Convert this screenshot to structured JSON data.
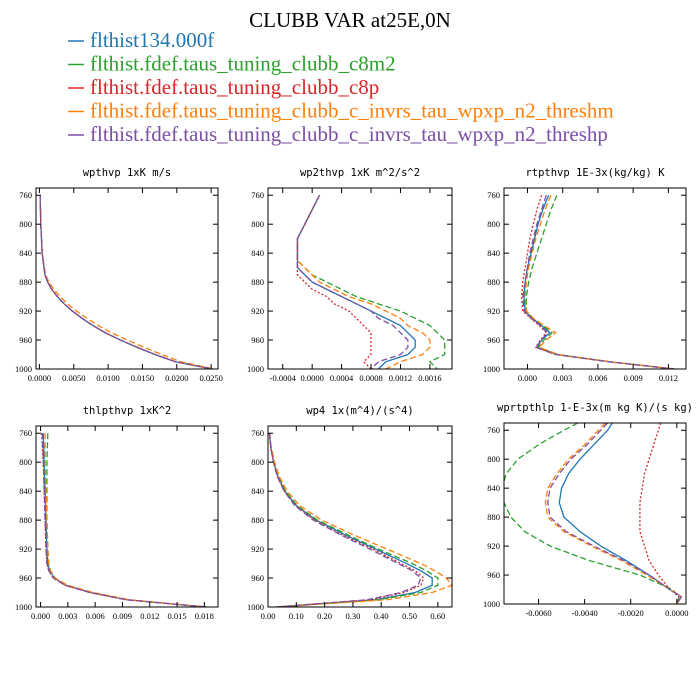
{
  "title": "CLUBB VAR at25E,0N",
  "legend": [
    {
      "name": "flthist134.000f",
      "color": "#1f77b4"
    },
    {
      "name": "flthist.fdef.taus_tuning_clubb_c8m2",
      "color": "#2ca02c"
    },
    {
      "name": "flthist.fdef.taus_tuning_clubb_c8p",
      "color": "#d62728"
    },
    {
      "name": "flthist.fdef.taus_tuning_clubb_c_invrs_tau_wpxp_n2_threshm",
      "color": "#ff7f0e"
    },
    {
      "name": "flthist.fdef.taus_tuning_clubb_c_invrs_tau_wpxp_n2_threshp",
      "color": "#7b4fa6"
    }
  ],
  "chart_data": [
    {
      "type": "line",
      "title": "wpthvp  1xK m/s",
      "xlim": [
        -0.0005,
        0.026
      ],
      "ylim": [
        1000,
        750
      ],
      "xticks": [
        0.0,
        0.005,
        0.01,
        0.015,
        0.02,
        0.025
      ],
      "xticklabels": [
        "0.0000",
        "0.0050",
        "0.0100",
        "0.0150",
        "0.0200",
        "0.0250"
      ],
      "yticks": [
        760,
        800,
        840,
        880,
        920,
        960,
        1000
      ],
      "y": [
        760,
        800,
        840,
        870,
        880,
        890,
        900,
        910,
        920,
        930,
        940,
        950,
        960,
        970,
        980,
        990,
        1000
      ],
      "series": [
        {
          "values": [
            0.0001,
            0.0002,
            0.0004,
            0.0008,
            0.0012,
            0.0018,
            0.0026,
            0.0036,
            0.0048,
            0.0062,
            0.0078,
            0.0096,
            0.0118,
            0.0142,
            0.0168,
            0.0198,
            0.0252
          ]
        },
        {
          "values": [
            0.0001,
            0.0002,
            0.0004,
            0.0008,
            0.0012,
            0.0018,
            0.0026,
            0.0036,
            0.0048,
            0.0062,
            0.0078,
            0.0096,
            0.0118,
            0.0142,
            0.0168,
            0.0198,
            0.0251
          ]
        },
        {
          "values": [
            0.0001,
            0.0002,
            0.0004,
            0.0008,
            0.0012,
            0.0018,
            0.0026,
            0.0036,
            0.0048,
            0.0062,
            0.0078,
            0.0096,
            0.0118,
            0.0142,
            0.0168,
            0.0198,
            0.0252
          ]
        },
        {
          "values": [
            0.0001,
            0.0002,
            0.0004,
            0.0009,
            0.0014,
            0.0021,
            0.003,
            0.0041,
            0.0054,
            0.0069,
            0.0086,
            0.0105,
            0.0128,
            0.0152,
            0.0178,
            0.0206,
            0.0255
          ]
        },
        {
          "values": [
            0.0001,
            0.0002,
            0.0004,
            0.0008,
            0.0012,
            0.0018,
            0.0026,
            0.0036,
            0.0048,
            0.0062,
            0.0078,
            0.0096,
            0.0118,
            0.0142,
            0.0168,
            0.0198,
            0.0252
          ]
        }
      ]
    },
    {
      "type": "line",
      "title": "wp2thvp  1xK m^2/s^2",
      "xlim": [
        -0.0006,
        0.0019
      ],
      "ylim": [
        1000,
        750
      ],
      "xticks": [
        -0.0004,
        0.0,
        0.0004,
        0.0008,
        0.0012,
        0.0016
      ],
      "xticklabels": [
        "-0.0004",
        "0.0000",
        "0.0004",
        "0.0008",
        "0.0012",
        "0.0016"
      ],
      "yticks": [
        760,
        800,
        840,
        880,
        920,
        960,
        1000
      ],
      "y": [
        760,
        780,
        800,
        820,
        840,
        850,
        860,
        870,
        880,
        890,
        900,
        910,
        920,
        930,
        940,
        950,
        960,
        970,
        980,
        990,
        1000
      ],
      "series": [
        {
          "values": [
            0.0001,
            0.0,
            -0.0001,
            -0.0002,
            -0.0002,
            -0.0002,
            -0.0002,
            -0.0001,
            0.0,
            0.0002,
            0.0004,
            0.0006,
            0.0008,
            0.001,
            0.0012,
            0.0013,
            0.0014,
            0.0014,
            0.0013,
            0.001,
            0.0009
          ]
        },
        {
          "values": [
            0.0001,
            0.0,
            -0.0001,
            -0.0002,
            -0.0002,
            -0.0002,
            -0.0001,
            0.0,
            0.0002,
            0.0004,
            0.0006,
            0.0009,
            0.0012,
            0.0014,
            0.0016,
            0.0017,
            0.0018,
            0.0018,
            0.0018,
            0.0016,
            0.0017
          ]
        },
        {
          "values": [
            0.0001,
            0.0,
            -0.0001,
            -0.0002,
            -0.0002,
            -0.0002,
            -0.0002,
            -0.0002,
            -0.0001,
            0.0,
            0.0002,
            0.0003,
            0.0005,
            0.0006,
            0.0007,
            0.0008,
            0.0008,
            0.0008,
            0.0008,
            0.0007,
            0.0008
          ]
        },
        {
          "values": [
            0.0001,
            0.0,
            -0.0001,
            -0.0002,
            -0.0002,
            -0.0002,
            -0.0001,
            0.0,
            0.0001,
            0.0003,
            0.0005,
            0.0008,
            0.001,
            0.0012,
            0.0013,
            0.0015,
            0.0016,
            0.0016,
            0.0015,
            0.0012,
            0.001
          ]
        },
        {
          "values": [
            0.0001,
            0.0,
            -0.0001,
            -0.0002,
            -0.0002,
            -0.0002,
            -0.0002,
            -0.0001,
            0.0,
            0.0002,
            0.0004,
            0.0006,
            0.0008,
            0.0009,
            0.0011,
            0.0012,
            0.0013,
            0.0013,
            0.0012,
            0.0009,
            0.0008
          ]
        }
      ]
    },
    {
      "type": "line",
      "title": "rtpthvp  1E-3x(kg/kg) K",
      "xlim": [
        -0.002,
        0.0135
      ],
      "ylim": [
        1000,
        750
      ],
      "xticks": [
        0.0,
        0.003,
        0.006,
        0.009,
        0.012
      ],
      "xticklabels": [
        "0.000",
        "0.003",
        "0.006",
        "0.009",
        "0.012"
      ],
      "yticks": [
        760,
        800,
        840,
        880,
        920,
        960,
        1000
      ],
      "y": [
        760,
        780,
        800,
        820,
        840,
        860,
        880,
        900,
        920,
        930,
        940,
        950,
        960,
        970,
        980,
        990,
        1000
      ],
      "series": [
        {
          "values": [
            0.0018,
            0.0013,
            0.0009,
            0.0006,
            0.0003,
            0.0,
            -0.0002,
            -0.0003,
            -0.0002,
            0.0004,
            0.0012,
            0.0019,
            0.0012,
            0.0008,
            0.0025,
            0.007,
            0.0125
          ]
        },
        {
          "values": [
            0.0025,
            0.002,
            0.0016,
            0.0012,
            0.0008,
            0.0004,
            0.0001,
            -0.0001,
            -0.0001,
            0.0005,
            0.0013,
            0.0021,
            0.0014,
            0.0009,
            0.0026,
            0.007,
            0.0125
          ]
        },
        {
          "values": [
            0.0012,
            0.0008,
            0.0005,
            0.0002,
            0.0,
            -0.0002,
            -0.0004,
            -0.0005,
            -0.0004,
            0.0003,
            0.001,
            0.0016,
            0.0011,
            0.0007,
            0.0024,
            0.0069,
            0.0125
          ]
        },
        {
          "values": [
            0.002,
            0.0015,
            0.0011,
            0.0007,
            0.0004,
            0.0001,
            -0.0001,
            -0.0002,
            -0.0001,
            0.0005,
            0.0014,
            0.0024,
            0.0016,
            0.001,
            0.0026,
            0.007,
            0.0125
          ]
        },
        {
          "values": [
            0.0016,
            0.0012,
            0.0008,
            0.0005,
            0.0002,
            0.0,
            -0.0002,
            -0.0004,
            -0.0003,
            0.0003,
            0.0011,
            0.0017,
            0.0012,
            0.0007,
            0.0024,
            0.0069,
            0.0125
          ]
        }
      ]
    },
    {
      "type": "line",
      "title": "thlpthvp  1xK^2",
      "xlim": [
        -0.0005,
        0.0195
      ],
      "ylim": [
        1000,
        750
      ],
      "xticks": [
        0.0,
        0.003,
        0.006,
        0.009,
        0.012,
        0.015,
        0.018
      ],
      "xticklabels": [
        "0.000",
        "0.003",
        "0.006",
        "0.009",
        "0.012",
        "0.015",
        "0.018"
      ],
      "yticks": [
        760,
        800,
        840,
        880,
        920,
        960,
        1000
      ],
      "y": [
        760,
        800,
        840,
        880,
        920,
        940,
        950,
        960,
        970,
        980,
        990,
        1000
      ],
      "series": [
        {
          "values": [
            0.0003,
            0.0004,
            0.0005,
            0.0006,
            0.0007,
            0.0008,
            0.001,
            0.0015,
            0.0028,
            0.0055,
            0.0095,
            0.0182
          ]
        },
        {
          "values": [
            0.0008,
            0.0007,
            0.0007,
            0.0007,
            0.0008,
            0.0009,
            0.0011,
            0.0016,
            0.0029,
            0.0056,
            0.0096,
            0.0182
          ]
        },
        {
          "values": [
            0.0001,
            0.0003,
            0.0004,
            0.0005,
            0.0006,
            0.0007,
            0.0009,
            0.0014,
            0.0027,
            0.0054,
            0.0094,
            0.0182
          ]
        },
        {
          "values": [
            0.0005,
            0.0005,
            0.0006,
            0.0007,
            0.0008,
            0.0009,
            0.0011,
            0.0016,
            0.003,
            0.0058,
            0.0098,
            0.0182
          ]
        },
        {
          "values": [
            0.0002,
            0.0003,
            0.0004,
            0.0005,
            0.0006,
            0.0007,
            0.0009,
            0.0014,
            0.0027,
            0.0054,
            0.0094,
            0.0182
          ]
        }
      ]
    },
    {
      "type": "line",
      "title": "wp4  1x(m^4)/(s^4)",
      "xlim": [
        0.0,
        0.65
      ],
      "ylim": [
        1000,
        750
      ],
      "xticks": [
        0.0,
        0.1,
        0.2,
        0.3,
        0.4,
        0.5,
        0.6
      ],
      "xticklabels": [
        "0.00",
        "0.10",
        "0.20",
        "0.30",
        "0.40",
        "0.50",
        "0.60"
      ],
      "yticks": [
        760,
        800,
        840,
        880,
        920,
        960,
        1000
      ],
      "y": [
        760,
        780,
        800,
        820,
        840,
        860,
        880,
        900,
        920,
        940,
        950,
        960,
        970,
        980,
        990,
        1000
      ],
      "series": [
        {
          "values": [
            0.005,
            0.01,
            0.02,
            0.035,
            0.06,
            0.1,
            0.17,
            0.27,
            0.38,
            0.49,
            0.54,
            0.58,
            0.58,
            0.52,
            0.38,
            0.03
          ]
        },
        {
          "values": [
            0.005,
            0.01,
            0.02,
            0.036,
            0.062,
            0.103,
            0.175,
            0.28,
            0.39,
            0.51,
            0.56,
            0.6,
            0.6,
            0.54,
            0.39,
            0.03
          ]
        },
        {
          "values": [
            0.005,
            0.01,
            0.02,
            0.034,
            0.058,
            0.097,
            0.165,
            0.26,
            0.37,
            0.47,
            0.52,
            0.55,
            0.54,
            0.48,
            0.36,
            0.03
          ]
        },
        {
          "values": [
            0.006,
            0.012,
            0.023,
            0.04,
            0.068,
            0.112,
            0.19,
            0.3,
            0.42,
            0.54,
            0.59,
            0.63,
            0.65,
            0.58,
            0.42,
            0.03
          ]
        },
        {
          "values": [
            0.005,
            0.01,
            0.019,
            0.033,
            0.057,
            0.095,
            0.16,
            0.255,
            0.36,
            0.46,
            0.51,
            0.54,
            0.53,
            0.47,
            0.35,
            0.03
          ]
        }
      ]
    },
    {
      "type": "line",
      "title": "wprtpthlp  1-E-3x(m kg K)/(s kg)",
      "xlim": [
        -0.0075,
        0.0004
      ],
      "ylim": [
        1000,
        750
      ],
      "xticks": [
        -0.006,
        -0.004,
        -0.002,
        0.0
      ],
      "xticklabels": [
        "-0.0060",
        "-0.0040",
        "-0.0020",
        "0.0000"
      ],
      "yticks": [
        760,
        800,
        840,
        880,
        920,
        960,
        1000
      ],
      "y": [
        750,
        760,
        780,
        800,
        820,
        840,
        860,
        880,
        900,
        920,
        940,
        960,
        980,
        990,
        1000
      ],
      "series": [
        {
          "values": [
            -0.0028,
            -0.003,
            -0.0036,
            -0.0042,
            -0.0047,
            -0.005,
            -0.0051,
            -0.0049,
            -0.0042,
            -0.0033,
            -0.0022,
            -0.0012,
            -0.0003,
            0.0002,
            0.0
          ]
        },
        {
          "values": [
            -0.0043,
            -0.0049,
            -0.006,
            -0.0069,
            -0.0074,
            -0.0076,
            -0.0075,
            -0.0072,
            -0.0066,
            -0.0055,
            -0.0038,
            -0.0016,
            -0.0002,
            0.0001,
            0.0
          ]
        },
        {
          "values": [
            -0.0007,
            -0.0008,
            -0.001,
            -0.0012,
            -0.0014,
            -0.0015,
            -0.0016,
            -0.0016,
            -0.0016,
            -0.0014,
            -0.0012,
            -0.0008,
            -0.0003,
            0.0001,
            0.0
          ]
        },
        {
          "values": [
            -0.0031,
            -0.0034,
            -0.004,
            -0.0047,
            -0.0052,
            -0.0056,
            -0.0057,
            -0.0056,
            -0.0049,
            -0.0037,
            -0.0024,
            -0.0013,
            -0.0003,
            0.0002,
            0.0
          ]
        },
        {
          "values": [
            -0.003,
            -0.0033,
            -0.0039,
            -0.0046,
            -0.0051,
            -0.0055,
            -0.0056,
            -0.0055,
            -0.0048,
            -0.0036,
            -0.0023,
            -0.0012,
            -0.0003,
            0.0002,
            0.0
          ]
        }
      ]
    }
  ]
}
